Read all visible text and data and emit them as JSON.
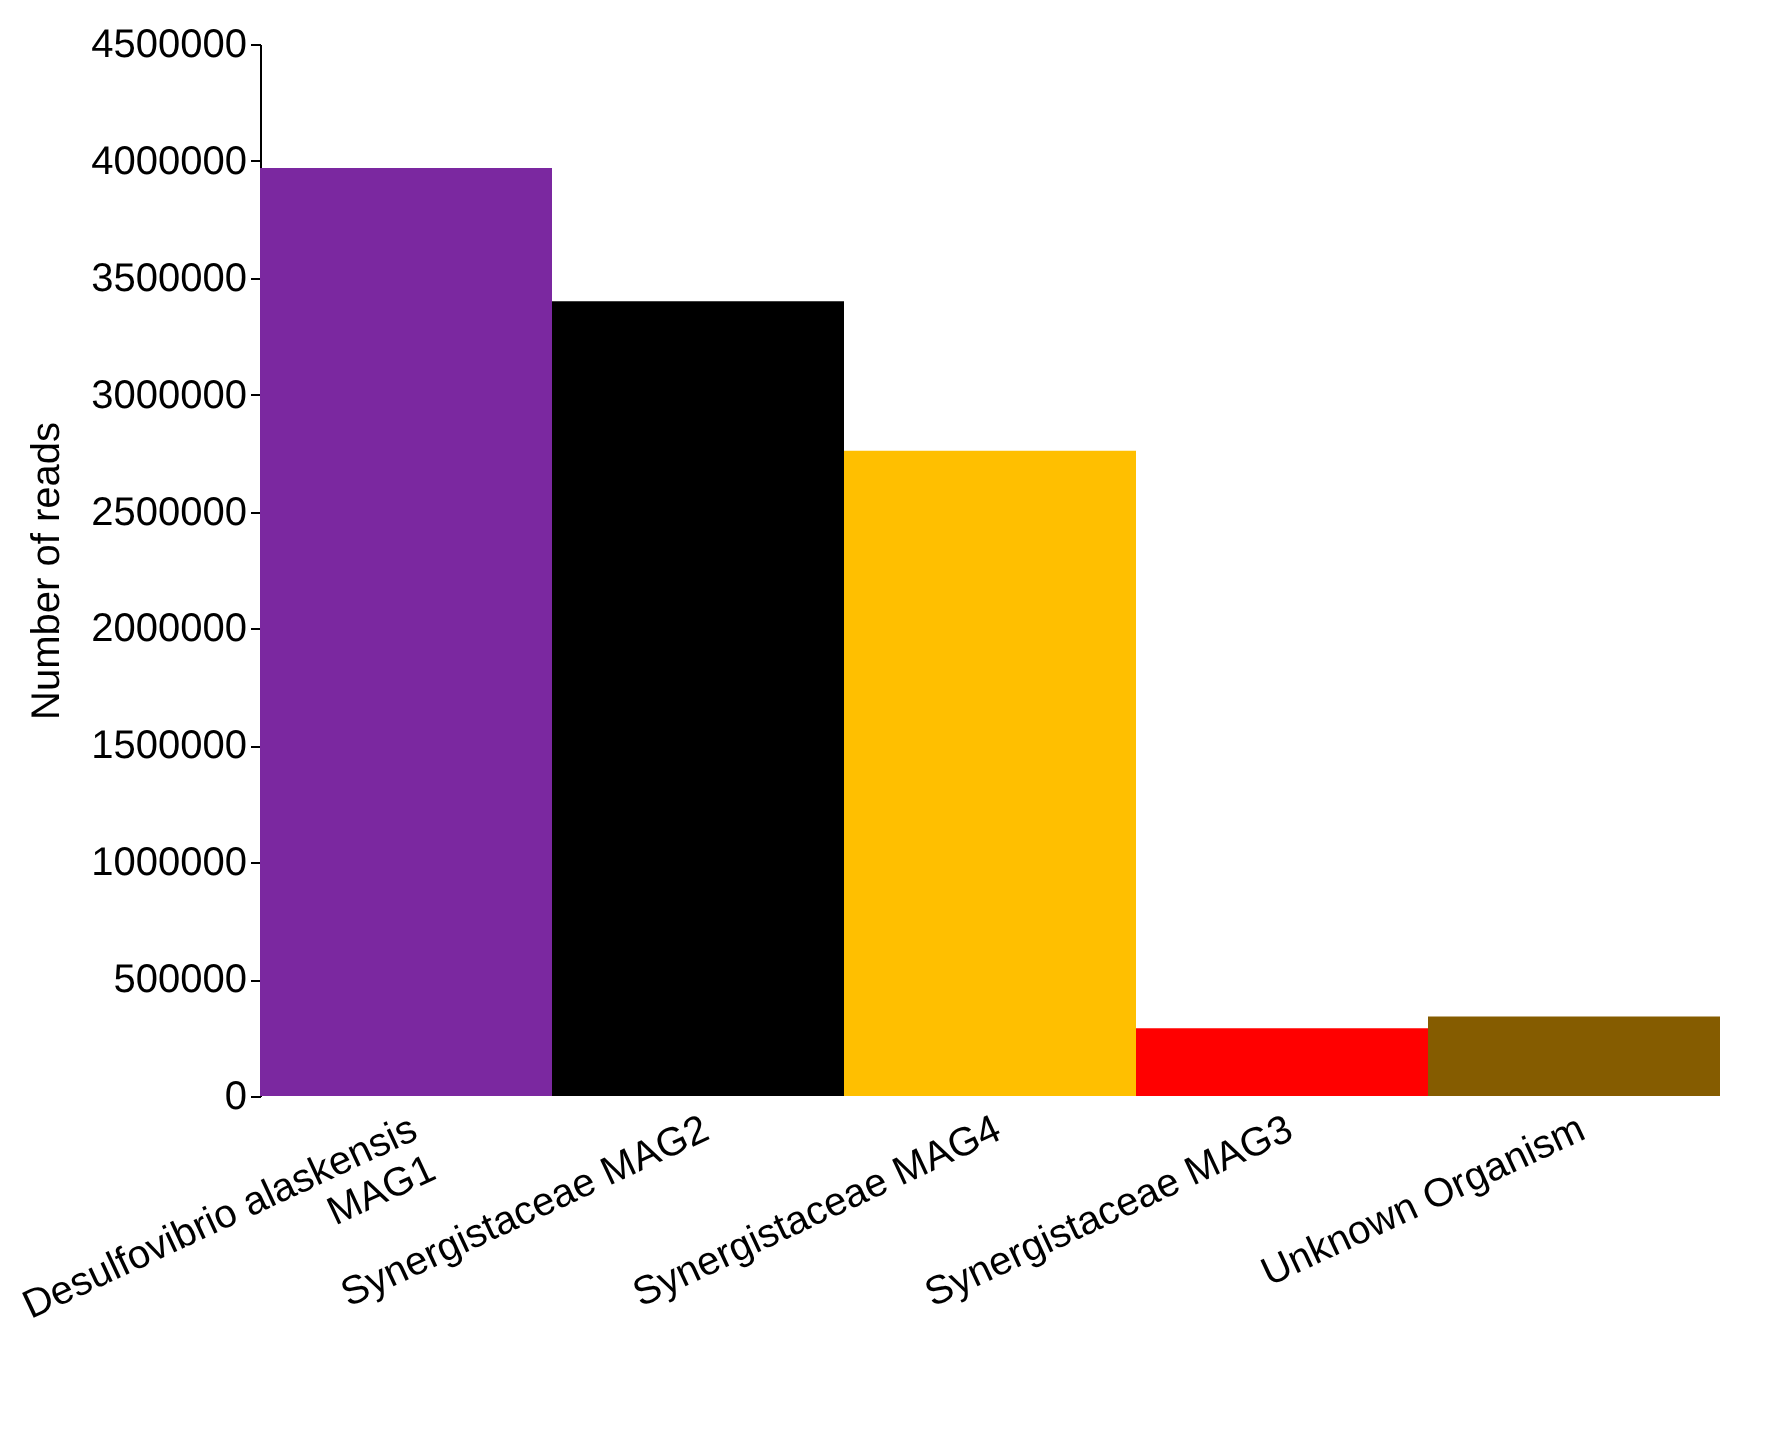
{
  "chart_data": {
    "type": "bar",
    "ylabel": "Number of reads",
    "categories": [
      "Desulfovibrio alaskensis MAG1",
      "Synergistaceae MAG2",
      "Synergistaceae MAG4",
      "Synergistaceae MAG3",
      "Unknown Organism"
    ],
    "values": [
      3970000,
      3400000,
      2760000,
      290000,
      340000
    ],
    "colors": [
      "#7b28a0",
      "#000000",
      "#ffbf00",
      "#ff0000",
      "#855c00"
    ],
    "ylim": [
      0,
      4500000
    ],
    "yticks": [
      0,
      500000,
      1000000,
      1500000,
      2000000,
      2500000,
      3000000,
      3500000,
      4000000,
      4500000
    ],
    "grid": false
  }
}
